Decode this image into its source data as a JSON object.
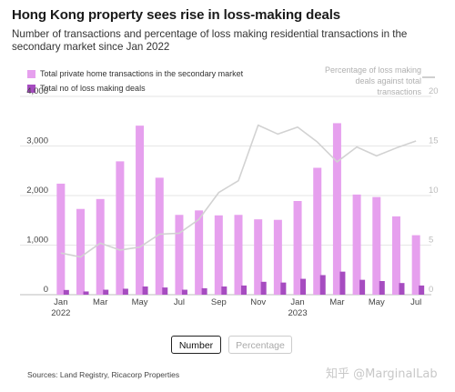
{
  "title": "Hong Kong property sees rise in loss-making deals",
  "subtitle": "Number of transactions and percentage of loss making residential transactions in the secondary market since Jan 2022",
  "legend": {
    "series_total": "Total private home transactions in the secondary market",
    "series_loss": "Total no of loss making deals",
    "series_pct_line1": "Percentage of loss making",
    "series_pct_line2": "deals against total transactions"
  },
  "toggles": {
    "number": "Number",
    "percentage": "Percentage"
  },
  "source": "Sources: Land Registry, Ricacorp Properties",
  "watermark": "知乎 @MarginalLab",
  "colors": {
    "total": "#e6a0ee",
    "loss": "#a64cc0",
    "pct": "#d2d2d2",
    "grid": "#e6e6e6"
  },
  "chart_data": {
    "type": "bar",
    "ylim": [
      0,
      4000
    ],
    "y2lim": [
      0,
      20
    ],
    "y_ticks": [
      "0",
      "1,000",
      "2,000",
      "3,000",
      "4,000"
    ],
    "y2_ticks": [
      "0",
      "5",
      "10",
      "15",
      "20"
    ],
    "x_tick_labels": [
      {
        "index": 0,
        "label": "Jan",
        "sub": "2022"
      },
      {
        "index": 2,
        "label": "Mar",
        "sub": ""
      },
      {
        "index": 4,
        "label": "May",
        "sub": ""
      },
      {
        "index": 6,
        "label": "Jul",
        "sub": ""
      },
      {
        "index": 8,
        "label": "Sep",
        "sub": ""
      },
      {
        "index": 10,
        "label": "Nov",
        "sub": ""
      },
      {
        "index": 12,
        "label": "Jan",
        "sub": "2023"
      },
      {
        "index": 14,
        "label": "Mar",
        "sub": ""
      },
      {
        "index": 16,
        "label": "May",
        "sub": ""
      },
      {
        "index": 18,
        "label": "Jul",
        "sub": ""
      }
    ],
    "categories": [
      "Jan 2022",
      "Feb 2022",
      "Mar 2022",
      "Apr 2022",
      "May 2022",
      "Jun 2022",
      "Jul 2022",
      "Aug 2022",
      "Sep 2022",
      "Oct 2022",
      "Nov 2022",
      "Dec 2022",
      "Jan 2023",
      "Feb 2023",
      "Mar 2023",
      "Apr 2023",
      "May 2023",
      "Jun 2023",
      "Jul 2023"
    ],
    "series": [
      {
        "name": "Total private home transactions in the secondary market",
        "axis": "left",
        "values": [
          2240,
          1730,
          1930,
          2690,
          3410,
          2360,
          1610,
          1700,
          1600,
          1610,
          1520,
          1510,
          1890,
          2560,
          3460,
          2020,
          1970,
          1580,
          1200
        ]
      },
      {
        "name": "Total no of loss making deals",
        "axis": "left",
        "values": [
          95,
          65,
          100,
          120,
          165,
          145,
          100,
          130,
          165,
          185,
          260,
          245,
          320,
          395,
          465,
          300,
          275,
          235,
          185
        ]
      },
      {
        "name": "Percentage of loss making deals against total transactions",
        "axis": "right",
        "type": "line",
        "values": [
          4.2,
          3.8,
          5.2,
          4.5,
          4.8,
          6.1,
          6.2,
          7.6,
          10.3,
          11.5,
          17.1,
          16.2,
          16.9,
          15.4,
          13.4,
          14.9,
          14.0,
          14.8,
          15.5
        ]
      }
    ]
  }
}
